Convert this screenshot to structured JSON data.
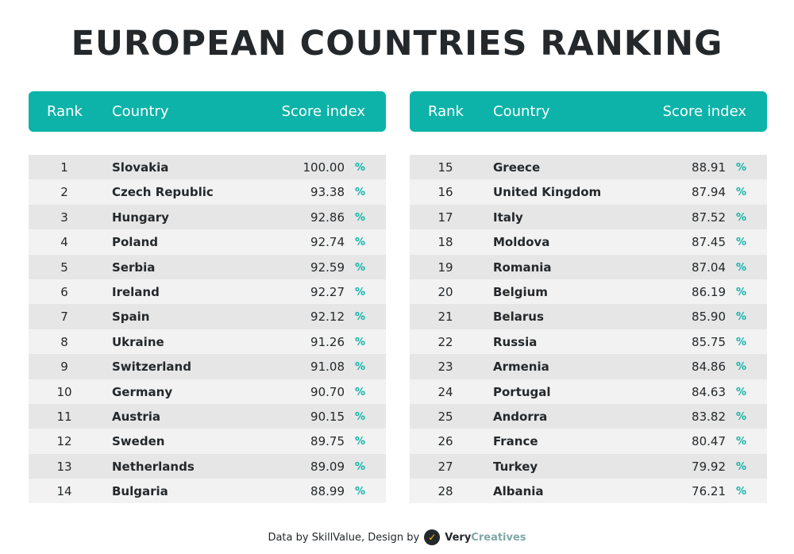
{
  "title": "EUROPEAN COUNTRIES RANKING",
  "headers": {
    "rank": "Rank",
    "country": "Country",
    "score": "Score index"
  },
  "percent_symbol": "%",
  "footer": {
    "credit": "Data by SkillValue, Design by",
    "brand_part1": "Very",
    "brand_part2": "Creatives",
    "logo_icon": "v-check-logo-icon"
  },
  "colors": {
    "accent": "#0db3a8",
    "text": "#24282b",
    "row_dark": "#e6e6e6",
    "row_light": "#f2f2f2"
  },
  "chart_data": {
    "type": "table",
    "columns": [
      "Rank",
      "Country",
      "Score index"
    ],
    "rows": [
      [
        1,
        "Slovakia",
        "100.00"
      ],
      [
        2,
        "Czech Republic",
        "93.38"
      ],
      [
        3,
        "Hungary",
        "92.86"
      ],
      [
        4,
        "Poland",
        "92.74"
      ],
      [
        5,
        "Serbia",
        "92.59"
      ],
      [
        6,
        "Ireland",
        "92.27"
      ],
      [
        7,
        "Spain",
        "92.12"
      ],
      [
        8,
        "Ukraine",
        "91.26"
      ],
      [
        9,
        "Switzerland",
        "91.08"
      ],
      [
        10,
        "Germany",
        "90.70"
      ],
      [
        11,
        "Austria",
        "90.15"
      ],
      [
        12,
        "Sweden",
        "89.75"
      ],
      [
        13,
        "Netherlands",
        "89.09"
      ],
      [
        14,
        "Bulgaria",
        "88.99"
      ],
      [
        15,
        "Greece",
        "88.91"
      ],
      [
        16,
        "United Kingdom",
        "87.94"
      ],
      [
        17,
        "Italy",
        "87.52"
      ],
      [
        18,
        "Moldova",
        "87.45"
      ],
      [
        19,
        "Romania",
        "87.04"
      ],
      [
        20,
        "Belgium",
        "86.19"
      ],
      [
        21,
        "Belarus",
        "85.90"
      ],
      [
        22,
        "Russia",
        "85.75"
      ],
      [
        23,
        "Armenia",
        "84.86"
      ],
      [
        24,
        "Portugal",
        "84.63"
      ],
      [
        25,
        "Andorra",
        "83.82"
      ],
      [
        26,
        "France",
        "80.47"
      ],
      [
        27,
        "Turkey",
        "79.92"
      ],
      [
        28,
        "Albania",
        "76.21"
      ]
    ]
  }
}
